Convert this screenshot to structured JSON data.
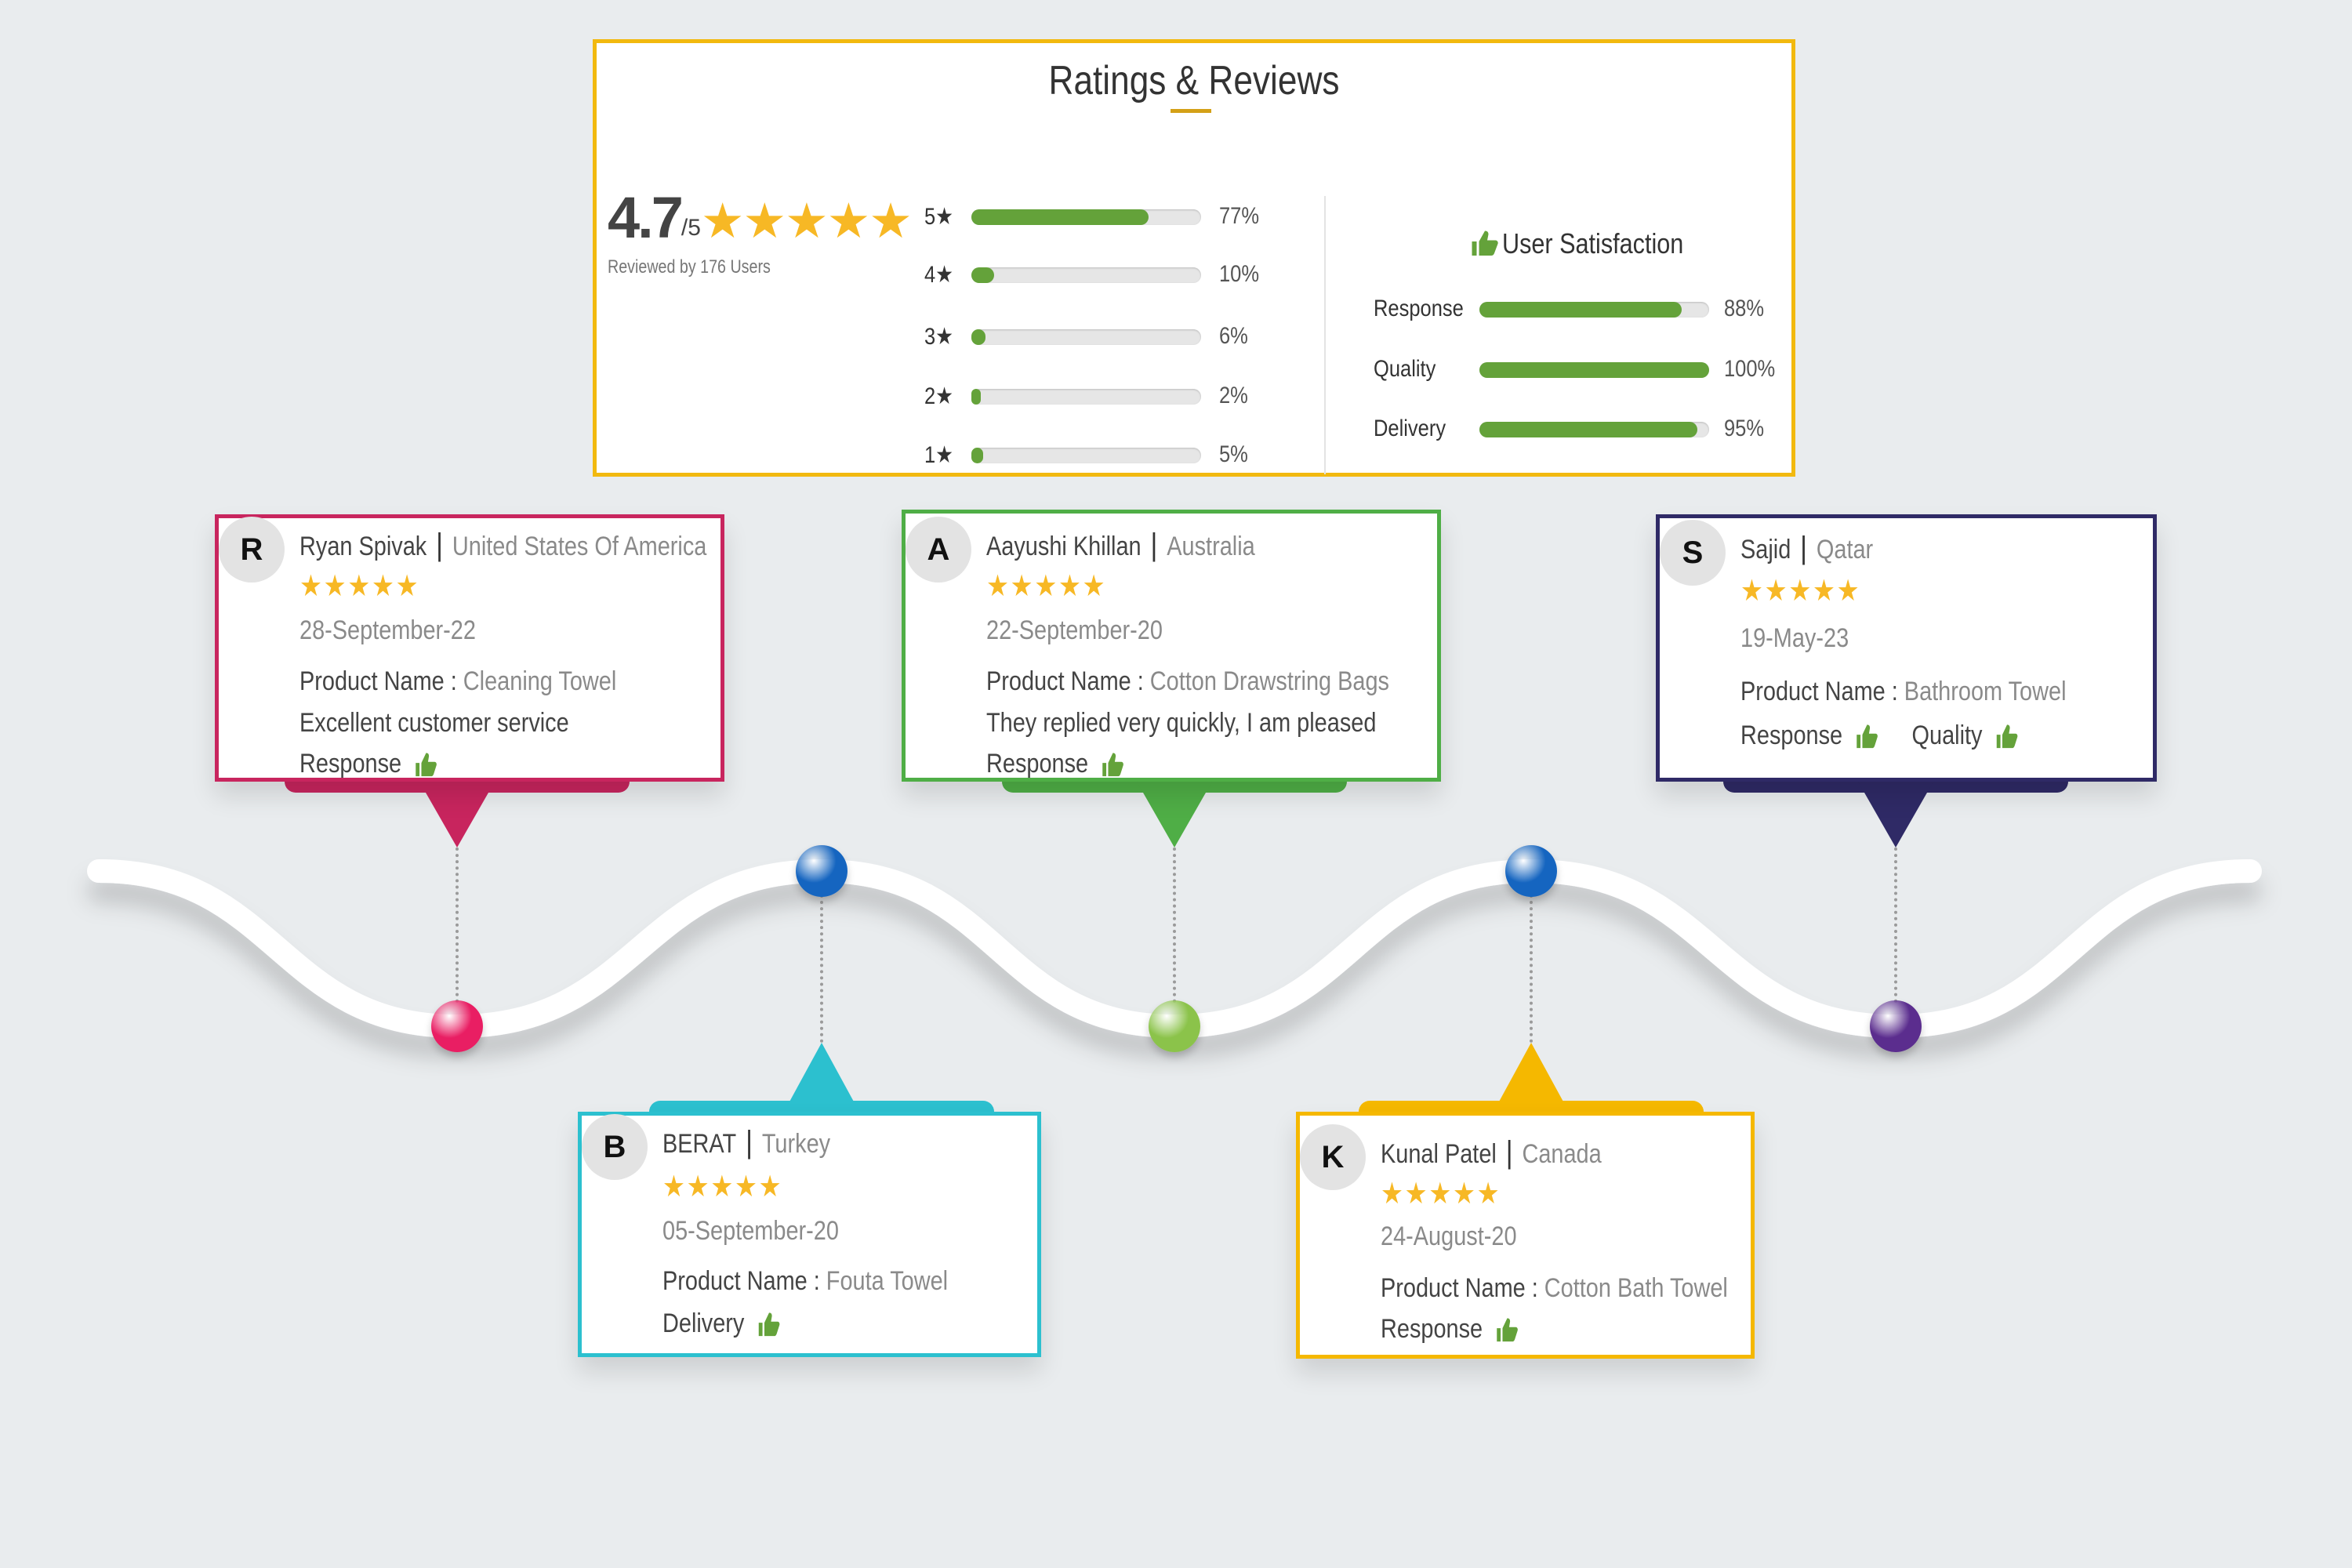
{
  "ratings": {
    "title": "Ratings & Reviews",
    "score": "4.7",
    "out_of": "/5",
    "stars": "★★★★★",
    "reviewed_by": "Reviewed by 176 Users",
    "distribution": [
      {
        "label": "5★",
        "percent": 77,
        "text": "77%"
      },
      {
        "label": "4★",
        "percent": 10,
        "text": "10%"
      },
      {
        "label": "3★",
        "percent": 6,
        "text": "6%"
      },
      {
        "label": "2★",
        "percent": 2,
        "text": "2%"
      },
      {
        "label": "1★",
        "percent": 5,
        "text": "5%"
      }
    ],
    "satisfaction": {
      "title": "User Satisfaction",
      "icon": "thumbs-up-icon",
      "items": [
        {
          "label": "Response",
          "percent": 88,
          "text": "88%"
        },
        {
          "label": "Quality",
          "percent": 100,
          "text": "100%"
        },
        {
          "label": "Delivery",
          "percent": 95,
          "text": "95%"
        }
      ]
    },
    "accent_color": "#f2b90f",
    "bar_color": "#64a23a"
  },
  "reviews": [
    {
      "initial": "R",
      "name": "Ryan Spivak",
      "country": "United States Of America",
      "stars": "★★★★★",
      "date": "28-September-22",
      "product_label": "Product Name : ",
      "product": "Cleaning Towel",
      "comment": "Excellent customer service",
      "tags": [
        "Response"
      ],
      "color": "#c8255e",
      "dot_color": "#e91e63"
    },
    {
      "initial": "B",
      "name": "BERAT",
      "country": "Turkey",
      "stars": "★★★★★",
      "date": "05-September-20",
      "product_label": "Product Name : ",
      "product": "Fouta Towel",
      "comment": "",
      "tags": [
        "Delivery"
      ],
      "color": "#2cc0cf",
      "dot_color": "#1565c0"
    },
    {
      "initial": "A",
      "name": "Aayushi Khillan",
      "country": "Australia",
      "stars": "★★★★★",
      "date": "22-September-20",
      "product_label": "Product Name : ",
      "product": "Cotton Drawstring Bags",
      "comment": "They replied very quickly, I am pleased",
      "tags": [
        "Response"
      ],
      "color": "#4fae46",
      "dot_color": "#8bc34a"
    },
    {
      "initial": "K",
      "name": "Kunal Patel",
      "country": "Canada",
      "stars": "★★★★★",
      "date": "24-August-20",
      "product_label": "Product Name : ",
      "product": "Cotton Bath Towel",
      "comment": "",
      "tags": [
        "Response"
      ],
      "color": "#f5b800",
      "dot_color": "#1565c0"
    },
    {
      "initial": "S",
      "name": "Sajid",
      "country": "Qatar",
      "stars": "★★★★★",
      "date": "19-May-23",
      "product_label": "Product Name : ",
      "product": "Bathroom Towel",
      "comment": "",
      "tags": [
        "Response",
        "Quality"
      ],
      "color": "#2f2a66",
      "dot_color": "#5b2d8e"
    }
  ]
}
